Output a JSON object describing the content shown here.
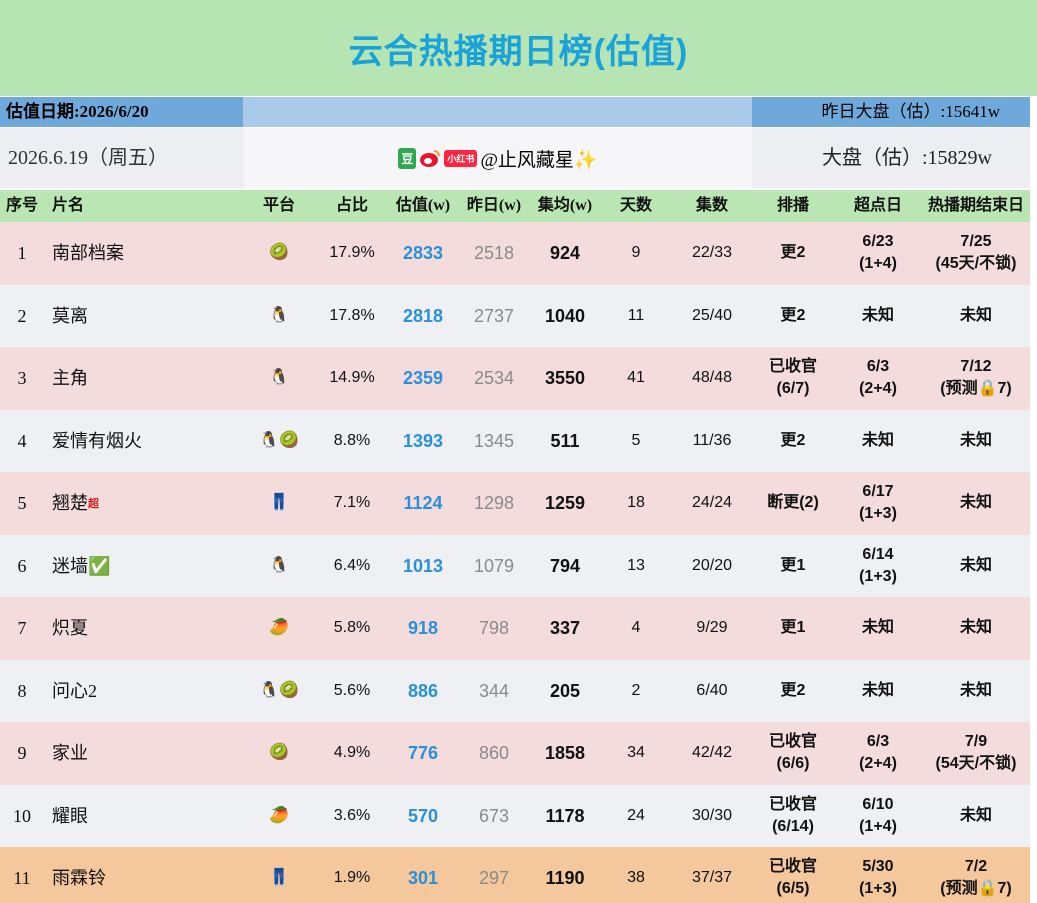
{
  "header": {
    "title": "云合热播期日榜(估值)",
    "valuation_date": "估值日期:2026/6/20",
    "yesterday_total": "昨日大盘（估）:15641w",
    "date": "2026.6.19（周五）",
    "source": {
      "douban": "豆",
      "xiaohongshu": "小红书",
      "handle": "@止风藏星✨"
    },
    "total": "大盘（估）:15829w"
  },
  "table": {
    "columns": [
      "序号",
      "片名",
      "平台",
      "占比",
      "估值(w)",
      "昨日(w)",
      "集均(w)",
      "天数",
      "集数",
      "排播",
      "超点日",
      "热播期结束日"
    ],
    "rows": [
      {
        "no": "1",
        "name": "南部档案",
        "platform": "🥝",
        "share": "17.9%",
        "est": "2833",
        "yest": "2518",
        "avg": "924",
        "days": "9",
        "eps": "22/33",
        "schedule": "更2",
        "peak": "6/23\n(1+4)",
        "end": "7/25\n(45天/不锁)"
      },
      {
        "no": "2",
        "name": "莫离",
        "platform": "🐧",
        "share": "17.8%",
        "est": "2818",
        "yest": "2737",
        "avg": "1040",
        "days": "11",
        "eps": "25/40",
        "schedule": "更2",
        "peak": "未知",
        "end": "未知"
      },
      {
        "no": "3",
        "name": "主角",
        "platform": "🐧",
        "share": "14.9%",
        "est": "2359",
        "yest": "2534",
        "avg": "3550",
        "days": "41",
        "eps": "48/48",
        "schedule": "已收官\n(6/7)",
        "peak": "6/3\n(2+4)",
        "end": "7/12\n(预测🔒7)"
      },
      {
        "no": "4",
        "name": "爱情有烟火",
        "platform": "🐧🥝",
        "share": "8.8%",
        "est": "1393",
        "yest": "1345",
        "avg": "511",
        "days": "5",
        "eps": "11/36",
        "schedule": "更2",
        "peak": "未知",
        "end": "未知"
      },
      {
        "no": "5",
        "name": "翘楚",
        "badge": "超",
        "platform": "👖",
        "share": "7.1%",
        "est": "1124",
        "yest": "1298",
        "avg": "1259",
        "days": "18",
        "eps": "24/24",
        "schedule": "断更(2)",
        "peak": "6/17\n(1+3)",
        "end": "未知"
      },
      {
        "no": "6",
        "name": "迷墙✅",
        "platform": "🐧",
        "share": "6.4%",
        "est": "1013",
        "yest": "1079",
        "avg": "794",
        "days": "13",
        "eps": "20/20",
        "schedule": "更1",
        "peak": "6/14\n(1+3)",
        "end": "未知"
      },
      {
        "no": "7",
        "name": "炽夏",
        "platform": "🥭",
        "share": "5.8%",
        "est": "918",
        "yest": "798",
        "avg": "337",
        "days": "4",
        "eps": "9/29",
        "schedule": "更1",
        "peak": "未知",
        "end": "未知"
      },
      {
        "no": "8",
        "name": "问心2",
        "platform": "🐧🥝",
        "share": "5.6%",
        "est": "886",
        "yest": "344",
        "avg": "205",
        "days": "2",
        "eps": "6/40",
        "schedule": "更2",
        "peak": "未知",
        "end": "未知"
      },
      {
        "no": "9",
        "name": "家业",
        "platform": "🥝",
        "share": "4.9%",
        "est": "776",
        "yest": "860",
        "avg": "1858",
        "days": "34",
        "eps": "42/42",
        "schedule": "已收官\n(6/6)",
        "peak": "6/3\n(2+4)",
        "end": "7/9\n(54天/不锁)"
      },
      {
        "no": "10",
        "name": "耀眼",
        "platform": "🥭",
        "share": "3.6%",
        "est": "570",
        "yest": "673",
        "avg": "1178",
        "days": "24",
        "eps": "30/30",
        "schedule": "已收官\n(6/14)",
        "peak": "6/10\n(1+4)",
        "end": "未知"
      },
      {
        "no": "11",
        "name": "雨霖铃",
        "platform": "👖",
        "share": "1.9%",
        "est": "301",
        "yest": "297",
        "avg": "1190",
        "days": "38",
        "eps": "37/37",
        "schedule": "已收官\n(6/5)",
        "peak": "5/30\n(1+3)",
        "end": "7/2\n(预测🔒7)"
      }
    ]
  }
}
